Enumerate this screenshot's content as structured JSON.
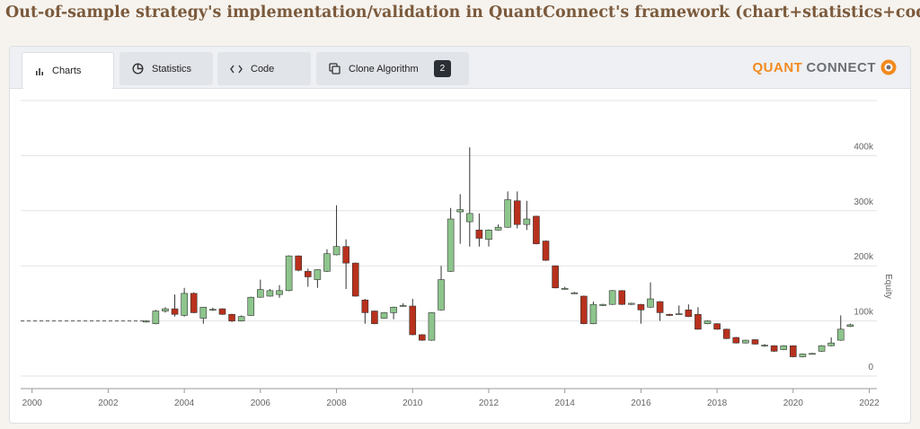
{
  "header": {
    "title": "Out-of-sample strategy's implementation/validation in QuantConnect's framework (chart+statistics+code)"
  },
  "tabs": [
    "Charts",
    "Statistics",
    "Code",
    "Clone Algorithm"
  ],
  "badge": "2",
  "logo": [
    "QUANT",
    "CONNECT"
  ],
  "chart_data": {
    "type": "candlestick",
    "y_label": "Equity",
    "up_color": "#8dc58c",
    "down_color": "#b8311d",
    "xlim": [
      1999.7,
      2022.2
    ],
    "xticks": [
      2000,
      2002,
      2004,
      2006,
      2008,
      2010,
      2012,
      2014,
      2016,
      2018,
      2020,
      2022
    ],
    "ylim": [
      0,
      500000
    ],
    "yticks": [
      0,
      {
        "value": 100000,
        "label": "100k"
      },
      {
        "value": 200000,
        "label": "200k"
      },
      {
        "value": 300000,
        "label": "300k"
      },
      {
        "value": 400000,
        "label": "400k"
      }
    ],
    "grid": true,
    "reference_line": {
      "x": [
        1999.7,
        2003
      ],
      "y": [
        100000,
        100000
      ],
      "color": "#555"
    },
    "x": [
      2003,
      2003.25,
      2003.5,
      2003.75,
      2004,
      2004.25,
      2004.5,
      2004.75,
      2005,
      2005.25,
      2005.5,
      2005.75,
      2006,
      2006.25,
      2006.5,
      2006.75,
      2007,
      2007.25,
      2007.5,
      2007.75,
      2008,
      2008.25,
      2008.5,
      2008.75,
      2009,
      2009.25,
      2009.5,
      2009.75,
      2010,
      2010.25,
      2010.5,
      2010.75,
      2011,
      2011.25,
      2011.5,
      2011.75,
      2012,
      2012.25,
      2012.5,
      2012.75,
      2013,
      2013.25,
      2013.5,
      2013.75,
      2014,
      2014.25,
      2014.5,
      2014.75,
      2015,
      2015.25,
      2015.5,
      2015.75,
      2016,
      2016.25,
      2016.5,
      2016.75,
      2017,
      2017.25,
      2017.5,
      2017.75,
      2018,
      2018.25,
      2018.5,
      2018.75,
      2019,
      2019.25,
      2019.5,
      2019.75,
      2020,
      2020.25,
      2020.5,
      2020.75,
      2021,
      2021.25,
      2021.5
    ],
    "open": [
      98000,
      95000,
      118000,
      122000,
      110000,
      150000,
      105000,
      120000,
      122000,
      112000,
      100000,
      110000,
      143000,
      145000,
      148000,
      155000,
      218000,
      190000,
      175000,
      190000,
      220000,
      235000,
      205000,
      138000,
      118000,
      105000,
      115000,
      127000,
      127000,
      75000,
      65000,
      120000,
      190000,
      298000,
      280000,
      265000,
      248000,
      265000,
      270000,
      318000,
      275000,
      290000,
      245000,
      200000,
      158000,
      150000,
      145000,
      95000,
      128000,
      130000,
      155000,
      130000,
      130000,
      125000,
      135000,
      112000,
      112000,
      120000,
      112000,
      95000,
      95000,
      85000,
      70000,
      60000,
      66000,
      55000,
      55000,
      48000,
      55000,
      35000,
      40000,
      45000,
      55000,
      65000,
      90000
    ],
    "high": [
      101000,
      120000,
      125000,
      148000,
      160000,
      152000,
      125000,
      124000,
      123000,
      113000,
      110000,
      144000,
      175000,
      158000,
      165000,
      219000,
      219000,
      195000,
      194000,
      230000,
      310000,
      248000,
      206000,
      140000,
      119000,
      116000,
      126000,
      132000,
      140000,
      76000,
      116000,
      200000,
      305000,
      330000,
      415000,
      295000,
      266000,
      275000,
      335000,
      335000,
      318000,
      291000,
      246000,
      201000,
      162000,
      153000,
      146000,
      135000,
      131000,
      156000,
      156000,
      133000,
      131000,
      170000,
      136000,
      113000,
      128000,
      130000,
      125000,
      101000,
      96000,
      86000,
      71000,
      66000,
      67000,
      58000,
      56000,
      56000,
      56000,
      41000,
      42000,
      56000,
      70000,
      110000,
      95000
    ],
    "low": [
      97000,
      94000,
      115000,
      108000,
      108000,
      114000,
      95000,
      118000,
      111000,
      98000,
      99000,
      109000,
      142000,
      144000,
      142000,
      154000,
      190000,
      162000,
      160000,
      189000,
      219000,
      158000,
      144000,
      95000,
      94000,
      104000,
      103000,
      126000,
      74000,
      64000,
      64000,
      119000,
      189000,
      240000,
      235000,
      235000,
      235000,
      264000,
      269000,
      268000,
      265000,
      239000,
      209000,
      159000,
      157000,
      149000,
      94000,
      94000,
      127000,
      129000,
      129000,
      129000,
      95000,
      124000,
      100000,
      109000,
      111000,
      107000,
      84000,
      94000,
      84000,
      67000,
      59000,
      59000,
      57000,
      53000,
      44000,
      47000,
      34000,
      34000,
      39000,
      44000,
      54000,
      64000,
      89000
    ],
    "close": [
      100000,
      118000,
      122000,
      112000,
      150000,
      115000,
      125000,
      121000,
      112000,
      100000,
      108000,
      143000,
      157000,
      155000,
      155000,
      218000,
      192000,
      180000,
      193000,
      222000,
      235000,
      205000,
      145000,
      115000,
      95000,
      115000,
      125000,
      128000,
      75000,
      65000,
      115000,
      175000,
      285000,
      302000,
      295000,
      250000,
      265000,
      270000,
      320000,
      275000,
      285000,
      240000,
      210000,
      160000,
      159000,
      151000,
      95000,
      130000,
      130000,
      155000,
      130000,
      132000,
      120000,
      140000,
      115000,
      110000,
      113000,
      108000,
      85000,
      100000,
      85000,
      68000,
      60000,
      65000,
      58000,
      56000,
      45000,
      55000,
      35000,
      40000,
      41000,
      55000,
      60000,
      85000,
      93000
    ]
  }
}
